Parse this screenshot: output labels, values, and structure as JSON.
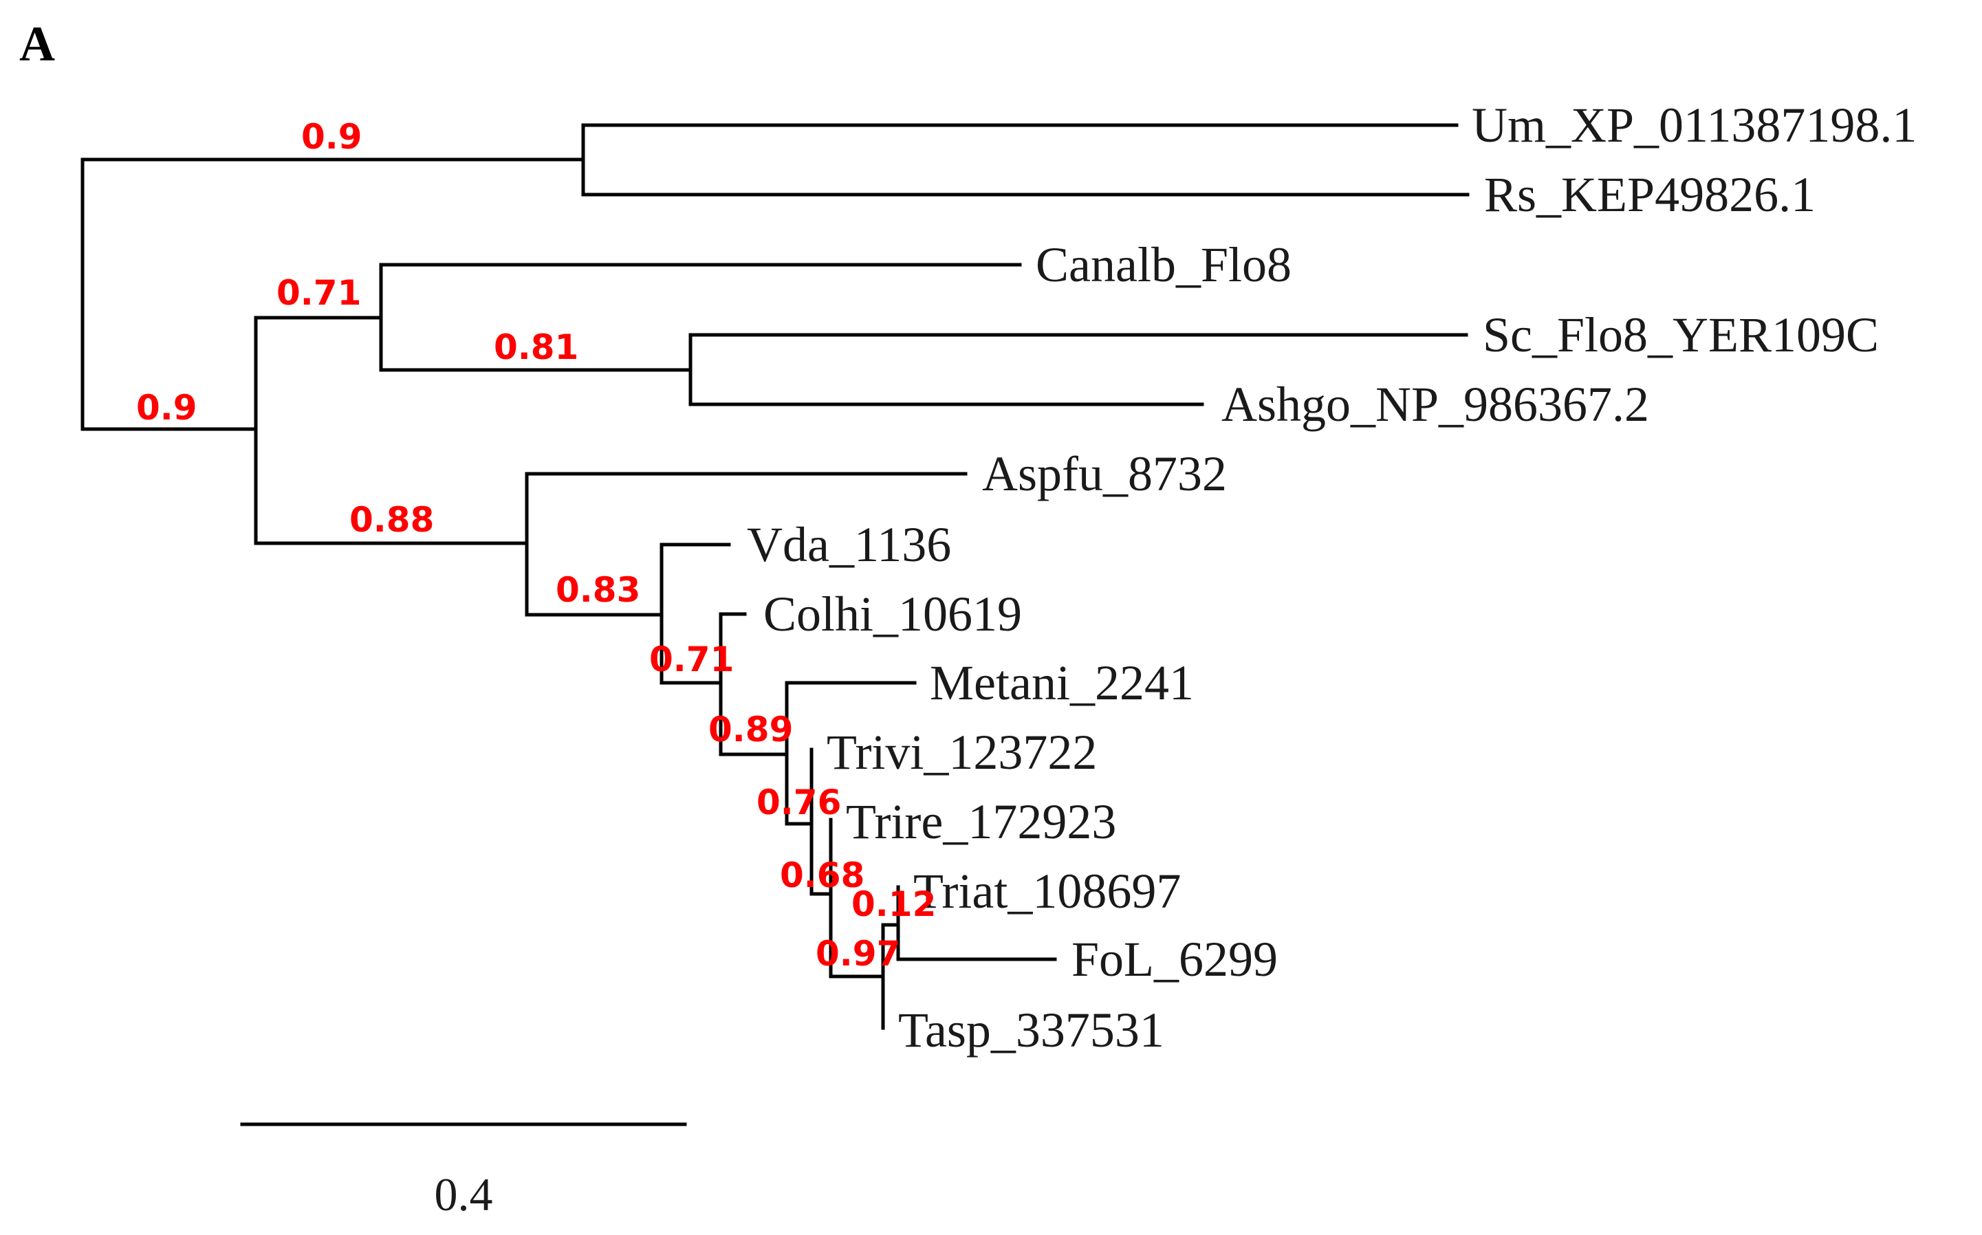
{
  "figure": {
    "panel_label": "A",
    "support_color": "#ff0000",
    "branch_color": "#000000"
  },
  "leaves": [
    {
      "id": "um",
      "label": "Um_XP_011387198.1"
    },
    {
      "id": "rs",
      "label": "Rs_KEP49826.1"
    },
    {
      "id": "canalb",
      "label": "Canalb_Flo8"
    },
    {
      "id": "sc",
      "label": "Sc_Flo8_YER109C"
    },
    {
      "id": "ashgo",
      "label": "Ashgo_NP_986367.2"
    },
    {
      "id": "aspfu",
      "label": "Aspfu_8732"
    },
    {
      "id": "vda",
      "label": "Vda_1136"
    },
    {
      "id": "colhi",
      "label": "Colhi_10619"
    },
    {
      "id": "metani",
      "label": "Metani_2241"
    },
    {
      "id": "trivi",
      "label": "Trivi_123722"
    },
    {
      "id": "trire",
      "label": "Trire_172923"
    },
    {
      "id": "triat",
      "label": "Triat_108697"
    },
    {
      "id": "fol",
      "label": "FoL_6299"
    },
    {
      "id": "tasp",
      "label": "Tasp_337531"
    }
  ],
  "support_values": [
    {
      "id": "n_um_rs",
      "value": "0.9"
    },
    {
      "id": "n_canalb_group",
      "value": "0.71"
    },
    {
      "id": "n_sc_ashgo",
      "value": "0.81"
    },
    {
      "id": "n_ingroup",
      "value": "0.9"
    },
    {
      "id": "n_pezizo",
      "value": "0.88"
    },
    {
      "id": "n_vda",
      "value": "0.83"
    },
    {
      "id": "n_colhi",
      "value": "0.71"
    },
    {
      "id": "n_metani",
      "value": "0.89"
    },
    {
      "id": "n_trivi",
      "value": "0.76"
    },
    {
      "id": "n_trire",
      "value": "0.68"
    },
    {
      "id": "n_triat",
      "value": "0.12"
    },
    {
      "id": "n_fol_tasp",
      "value": "0.97"
    }
  ],
  "scale_bar": {
    "label": "0.4",
    "value": 0.4
  }
}
